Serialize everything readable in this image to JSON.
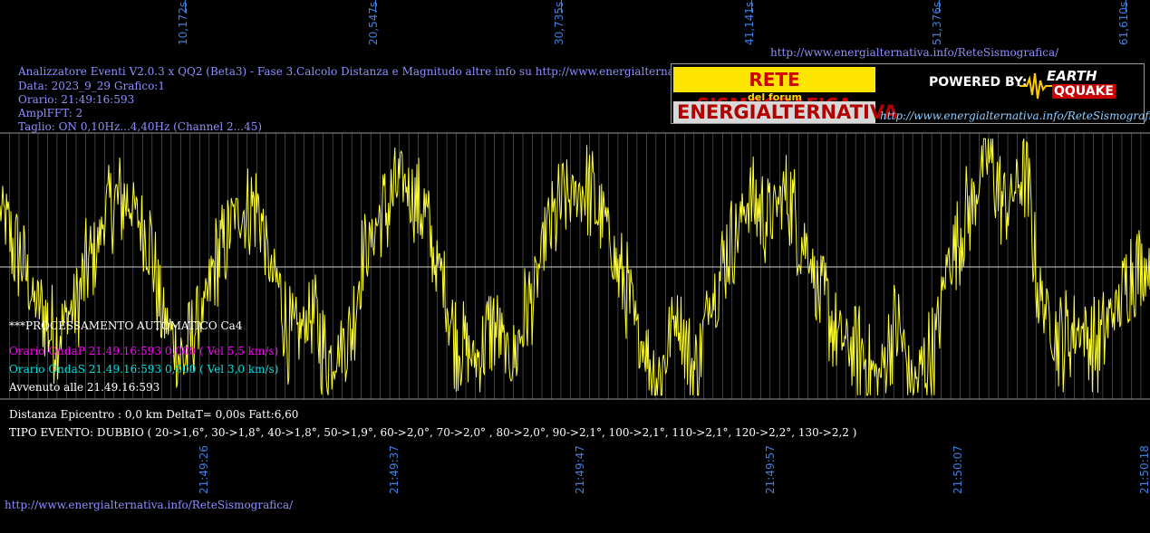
{
  "header": {
    "top_link": "http://www.energialternativa.info/ReteSismografica/",
    "line1": "Analizzatore Eventi V2.0.3 x QQ2 (Beta3) - Fase 3.Calcolo Distanza e Magnitudo altre info su http://www.energialternativa.info/ReteSism",
    "line2": "Data: 2023_9_29 Grafico:1",
    "line3": "Orario: 21:49:16:593",
    "line4": "AmplFFT: 2",
    "line5": "Taglio: ON 0,10Hz...4,40Hz       (Channel 2...45)"
  },
  "banner": {
    "title1": "RETE SISMOGRAFICA",
    "subtitle": "del forum",
    "title2": "ENERGIALTERNATIVA",
    "powered": "POWERED BY:",
    "logo_line1": "EARTH",
    "logo_line2": "QQUAKE",
    "link": "http://www.energialternativa.info/ReteSismografica"
  },
  "status": {
    "processing": "***PROCESSAMENTO AUTOMATICO Ca4",
    "onda_p": "Orario OndaP 21.49.16:593  0,000 ( Vel 5,5 km/s)",
    "onda_s": "Orario OndaS 21.49.16:593  0,000 ( Vel 3,0 km/s)",
    "avvenuto": "Avvenuto alle 21.49.16:593",
    "distanza": "Distanza Epicentro : 0,0 km DeltaT= 0,00s  Fatt:6,60",
    "tipo": "TIPO EVENTO: DUBBIO ( 20->1,6°, 30->1,8°, 40->1,8°, 50->1,9°, 60->2,0°, 70->2,0° , 80->2,0°, 90->2,1°, 100->2,1°, 110->2,1°, 120->2,2°, 130->2,2 )"
  },
  "footer_link": "http://www.energialternativa.info/ReteSismografica/",
  "colors": {
    "signal": "#ffff33",
    "grid": "#6a6a6a",
    "axis_label": "#3f7fdf",
    "info_text": "#8f8fff",
    "onda_p": "#ff00ff",
    "onda_s": "#00e0e0"
  },
  "chart_data": {
    "type": "line",
    "x_seconds_ticks": [
      "10,172s",
      "20,547s",
      "30,735s",
      "41,141s",
      "51,376s",
      "61,610s"
    ],
    "x_seconds_values": [
      10.172,
      20.547,
      30.735,
      41.141,
      51.376,
      61.61
    ],
    "x_time_ticks": [
      "21:49:26",
      "21:49:37",
      "21:49:47",
      "21:49:57",
      "21:50:07",
      "21:50:18"
    ],
    "xlim_seconds": [
      0,
      62.9
    ],
    "ylim": [
      -1,
      1
    ],
    "grid": "vertical lines plus zero line",
    "series": [
      {
        "color": "#ffff33",
        "x": [
          0,
          1,
          2,
          3,
          4,
          5,
          6,
          7,
          8,
          9,
          10,
          11,
          12,
          13,
          14,
          15,
          16,
          17,
          18,
          19,
          20,
          21,
          22,
          23,
          24,
          25,
          26,
          27,
          28,
          29,
          30,
          31,
          32,
          33,
          34,
          35,
          36,
          37,
          38,
          39,
          40,
          41,
          42,
          43,
          44,
          45,
          46,
          47,
          48,
          49,
          50,
          51,
          52,
          53,
          54,
          55,
          56,
          57,
          58,
          59,
          60,
          61,
          62,
          62.9
        ],
        "values": [
          0.45,
          0.1,
          -0.3,
          -0.55,
          -0.35,
          0.05,
          0.5,
          0.55,
          0.3,
          -0.45,
          -0.75,
          -0.4,
          0.1,
          0.45,
          0.5,
          -0.1,
          -0.6,
          -0.4,
          -0.75,
          -0.6,
          0.15,
          0.45,
          0.7,
          0.5,
          0.0,
          -0.6,
          -0.75,
          -0.5,
          -0.75,
          -0.3,
          0.3,
          0.55,
          0.65,
          0.4,
          -0.1,
          -0.6,
          -0.9,
          -0.4,
          -0.85,
          -0.2,
          0.2,
          0.55,
          0.4,
          0.6,
          0.2,
          -0.3,
          -0.6,
          -0.7,
          -0.9,
          -0.5,
          -0.95,
          -0.7,
          0.1,
          0.45,
          0.9,
          0.5,
          0.75,
          -0.3,
          -0.6,
          -0.5,
          -0.65,
          -0.35,
          0.0,
          0.0
        ]
      }
    ]
  }
}
